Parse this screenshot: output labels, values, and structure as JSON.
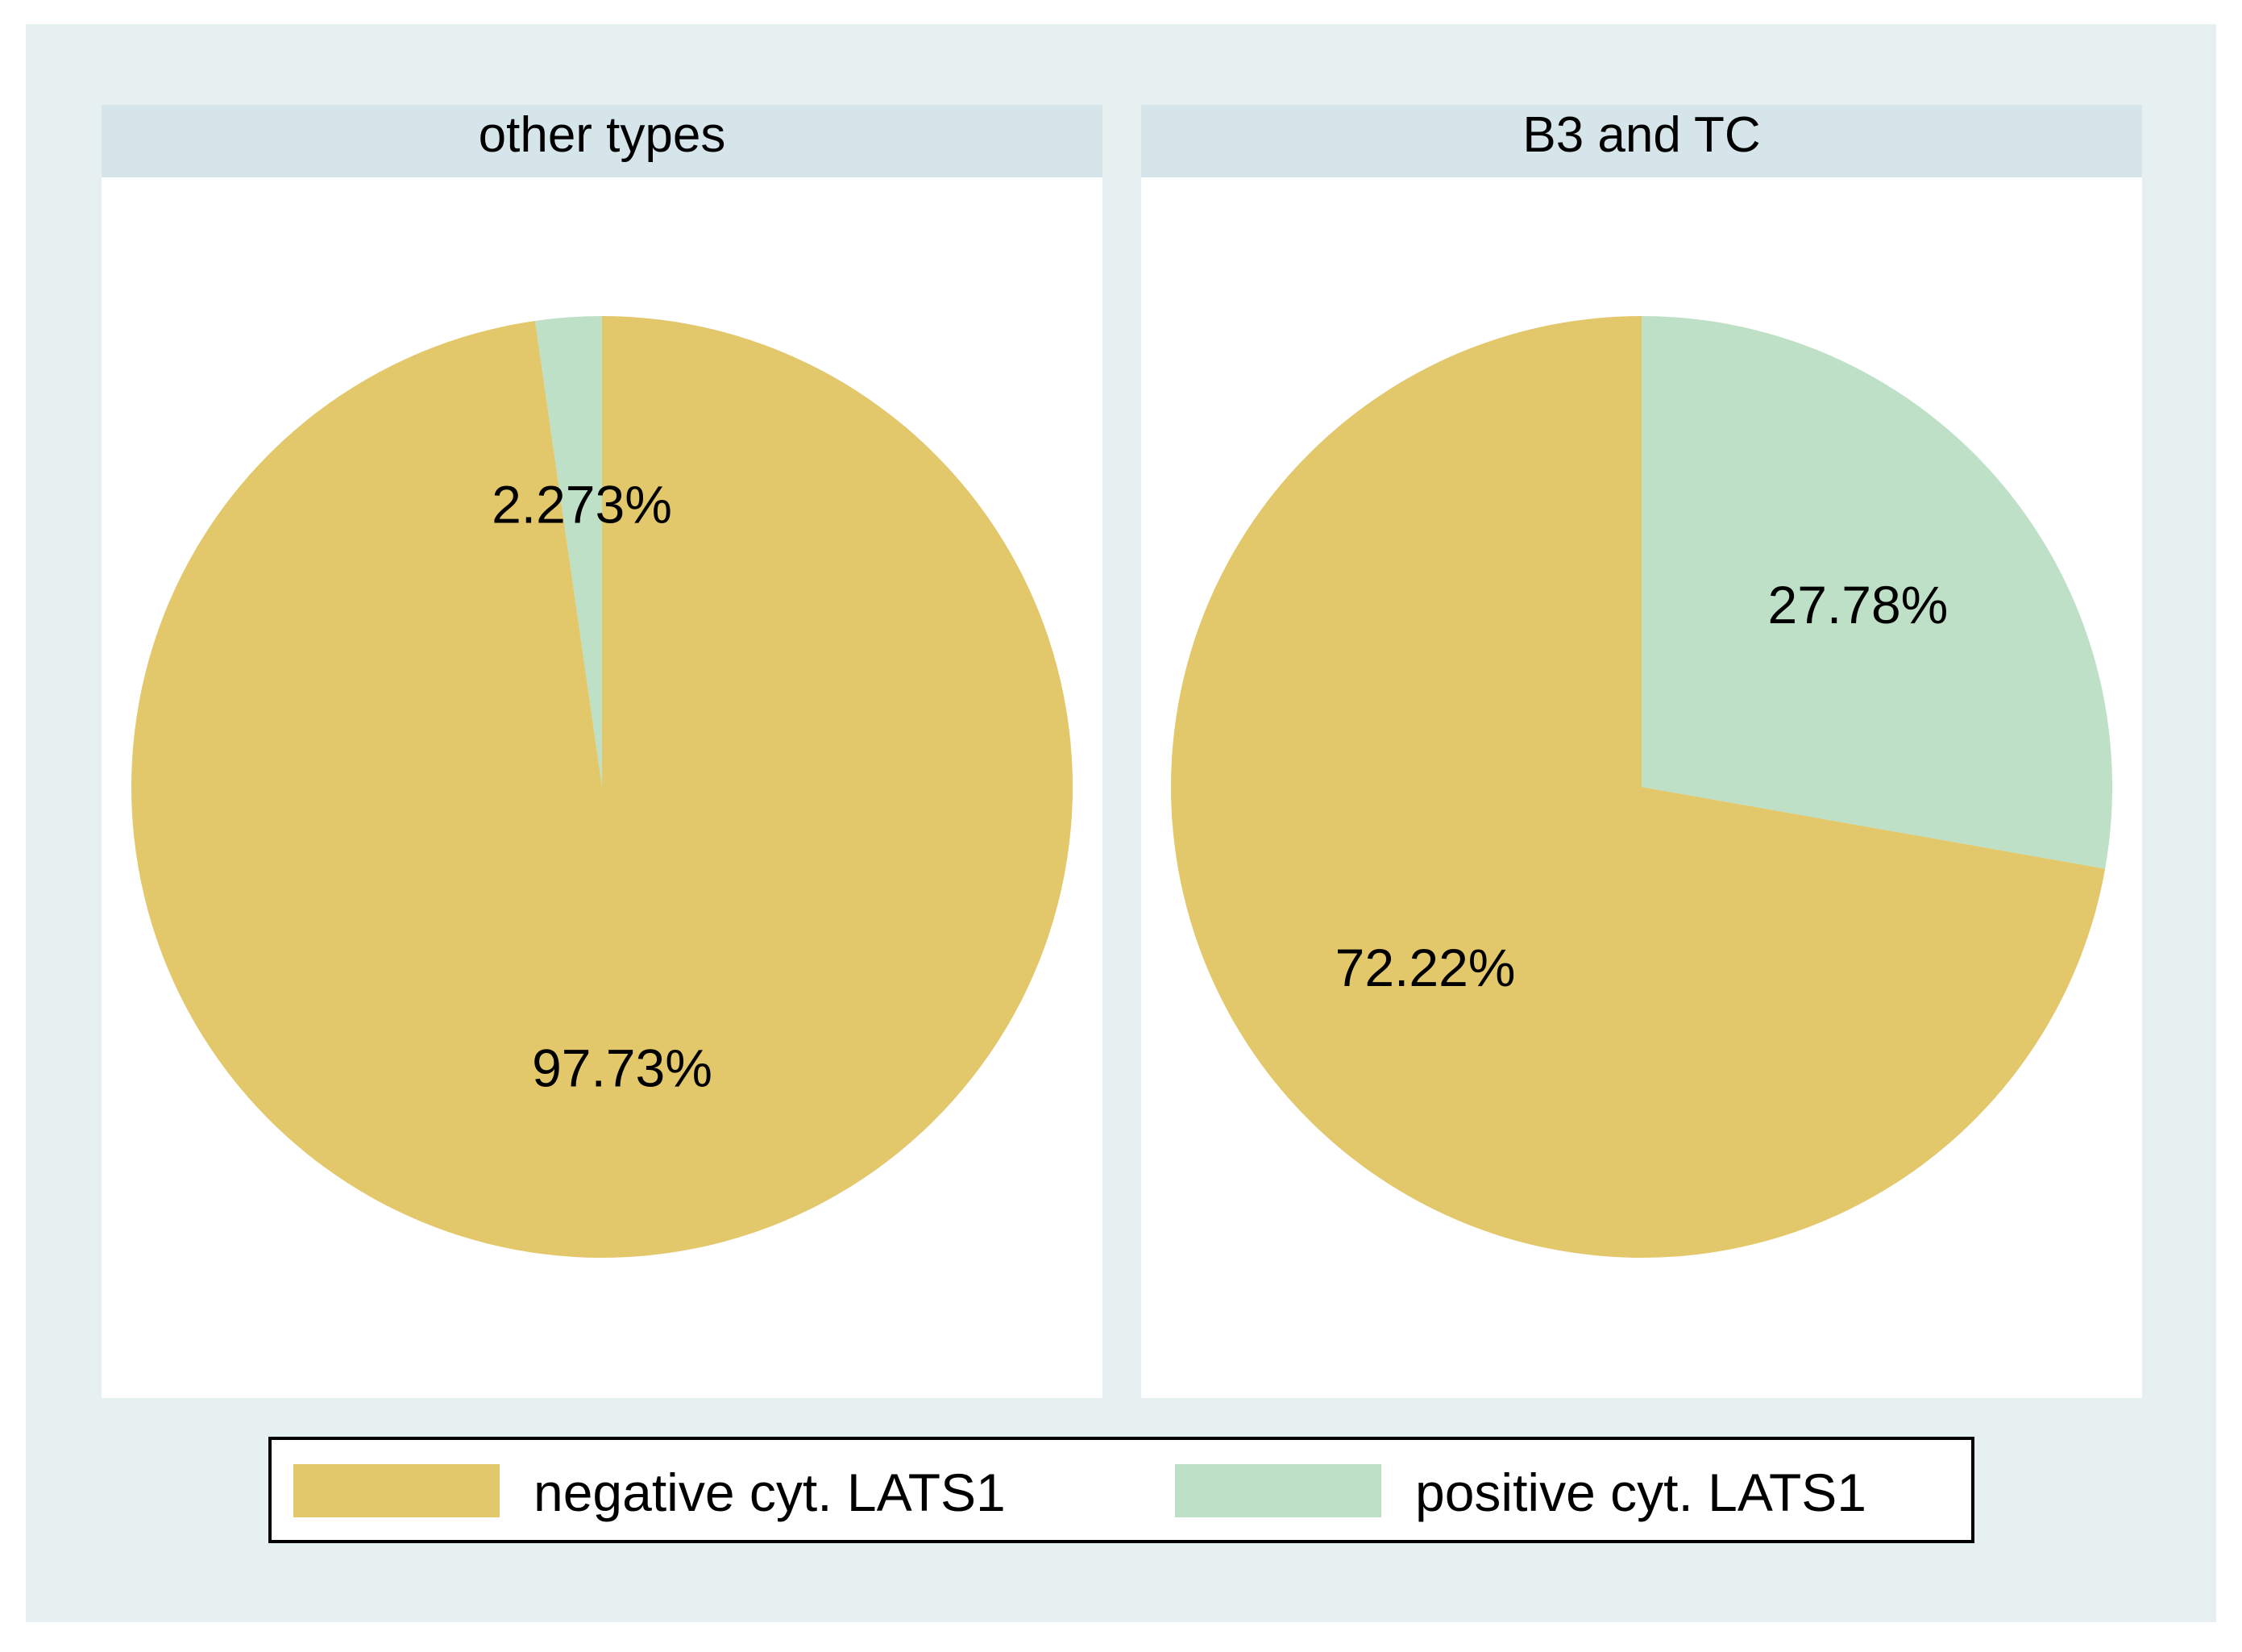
{
  "colors": {
    "outer_background": "#e6f0f0",
    "panel_background": "#ffffff",
    "strip_background": "#d6e5ea",
    "negative": "#e2c76b",
    "positive": "#bde0c6",
    "legend_border": "#000000",
    "text": "#000000"
  },
  "chart_data": [
    {
      "type": "pie",
      "title": "other types",
      "slices": [
        {
          "label": "positive cyt. LATS1",
          "value": 2.273,
          "display": "2.273%"
        },
        {
          "label": "negative cyt. LATS1",
          "value": 97.73,
          "display": "97.73%"
        }
      ]
    },
    {
      "type": "pie",
      "title": "B3 and TC",
      "slices": [
        {
          "label": "negative cyt. LATS1",
          "value": 72.22,
          "display": "72.22%"
        },
        {
          "label": "positive cyt. LATS1",
          "value": 27.78,
          "display": "27.78%"
        }
      ]
    }
  ],
  "legend": {
    "items": [
      {
        "label": "negative cyt. LATS1",
        "color_key": "negative"
      },
      {
        "label": "positive cyt. LATS1",
        "color_key": "positive"
      }
    ]
  }
}
